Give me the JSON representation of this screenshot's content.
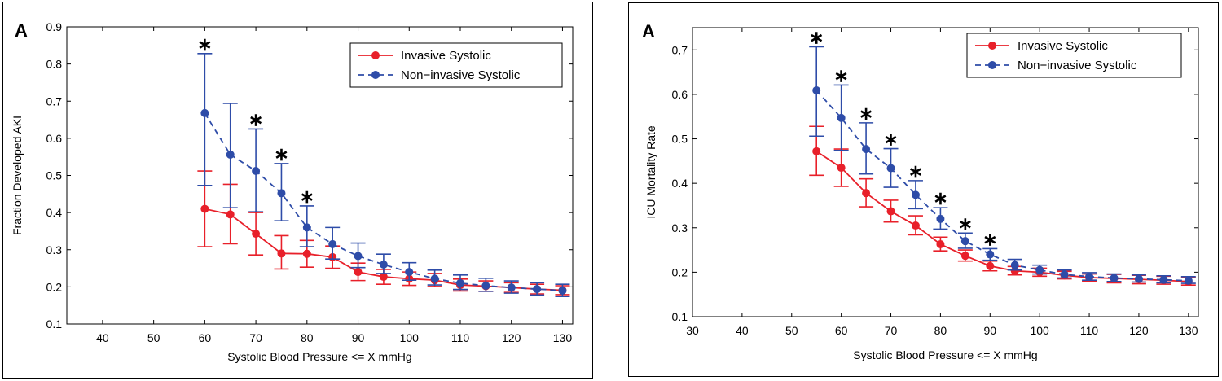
{
  "chart_data": [
    {
      "type": "line",
      "panel_label": "A",
      "xlabel": "Systolic Blood Pressure <= X mmHg",
      "ylabel": "Fraction Developed AKI",
      "xlim": [
        33,
        132
      ],
      "ylim": [
        0.1,
        0.9
      ],
      "xticks": [
        40,
        50,
        60,
        70,
        80,
        90,
        100,
        110,
        120,
        130
      ],
      "yticks": [
        0.1,
        0.2,
        0.3,
        0.4,
        0.5,
        0.6,
        0.7,
        0.8,
        0.9
      ],
      "grid": false,
      "legend_position": "top-right",
      "significance_marker": "∗",
      "significant_x": [
        60,
        70,
        75,
        80
      ],
      "x": [
        60,
        65,
        70,
        75,
        80,
        85,
        90,
        95,
        100,
        105,
        110,
        115,
        120,
        125,
        130
      ],
      "series": [
        {
          "name": "Invasive Systolic",
          "color": "#e8202a",
          "line_style": "solid",
          "values": [
            0.41,
            0.395,
            0.343,
            0.29,
            0.289,
            0.28,
            0.24,
            0.227,
            0.222,
            0.218,
            0.205,
            0.202,
            0.198,
            0.194,
            0.191
          ],
          "err_low": [
            0.308,
            0.316,
            0.286,
            0.248,
            0.253,
            0.25,
            0.217,
            0.207,
            0.204,
            0.201,
            0.189,
            0.188,
            0.185,
            0.181,
            0.179
          ],
          "err_high": [
            0.512,
            0.476,
            0.4,
            0.338,
            0.325,
            0.31,
            0.264,
            0.247,
            0.24,
            0.236,
            0.221,
            0.216,
            0.211,
            0.207,
            0.203
          ]
        },
        {
          "name": "Non−invasive Systolic",
          "color": "#2e4ca8",
          "line_style": "dashed",
          "values": [
            0.668,
            0.556,
            0.512,
            0.452,
            0.36,
            0.315,
            0.283,
            0.26,
            0.24,
            0.222,
            0.21,
            0.203,
            0.198,
            0.194,
            0.19
          ],
          "err_low": [
            0.473,
            0.413,
            0.402,
            0.378,
            0.308,
            0.275,
            0.252,
            0.236,
            0.218,
            0.205,
            0.193,
            0.188,
            0.183,
            0.178,
            0.174
          ],
          "err_high": [
            0.828,
            0.694,
            0.625,
            0.532,
            0.418,
            0.36,
            0.318,
            0.288,
            0.265,
            0.245,
            0.232,
            0.223,
            0.216,
            0.211,
            0.207
          ]
        }
      ]
    },
    {
      "type": "line",
      "panel_label": "A",
      "xlabel": "Systolic Blood Pressure <= X mmHg",
      "ylabel": "ICU Mortality Rate",
      "xlim": [
        30,
        132
      ],
      "ylim": [
        0.1,
        0.75
      ],
      "xticks": [
        30,
        40,
        50,
        60,
        70,
        80,
        90,
        100,
        110,
        120,
        130
      ],
      "yticks": [
        0.1,
        0.2,
        0.3,
        0.4,
        0.5,
        0.6,
        0.7
      ],
      "grid": false,
      "legend_position": "top-right",
      "significance_marker": "∗",
      "significant_x": [
        55,
        60,
        65,
        70,
        75,
        80,
        85,
        90
      ],
      "x": [
        55,
        60,
        65,
        70,
        75,
        80,
        85,
        90,
        95,
        100,
        105,
        110,
        115,
        120,
        125,
        130
      ],
      "series": [
        {
          "name": "Invasive Systolic",
          "color": "#e8202a",
          "line_style": "solid",
          "values": [
            0.472,
            0.435,
            0.378,
            0.337,
            0.305,
            0.263,
            0.237,
            0.214,
            0.203,
            0.2,
            0.193,
            0.188,
            0.186,
            0.184,
            0.182,
            0.179
          ],
          "err_low": [
            0.418,
            0.393,
            0.347,
            0.313,
            0.284,
            0.248,
            0.225,
            0.203,
            0.194,
            0.191,
            0.185,
            0.179,
            0.176,
            0.174,
            0.173,
            0.171
          ],
          "err_high": [
            0.528,
            0.477,
            0.41,
            0.362,
            0.327,
            0.279,
            0.25,
            0.225,
            0.213,
            0.209,
            0.202,
            0.196,
            0.195,
            0.193,
            0.191,
            0.188
          ]
        },
        {
          "name": "Non−invasive Systolic",
          "color": "#2e4ca8",
          "line_style": "dashed",
          "values": [
            0.609,
            0.547,
            0.477,
            0.434,
            0.374,
            0.32,
            0.27,
            0.24,
            0.216,
            0.205,
            0.195,
            0.19,
            0.187,
            0.185,
            0.183,
            0.181
          ],
          "err_low": [
            0.506,
            0.474,
            0.421,
            0.391,
            0.343,
            0.297,
            0.254,
            0.227,
            0.205,
            0.196,
            0.187,
            0.182,
            0.179,
            0.178,
            0.176,
            0.175
          ],
          "err_high": [
            0.707,
            0.621,
            0.536,
            0.478,
            0.406,
            0.345,
            0.288,
            0.253,
            0.229,
            0.216,
            0.205,
            0.199,
            0.196,
            0.194,
            0.192,
            0.19
          ]
        }
      ]
    }
  ]
}
